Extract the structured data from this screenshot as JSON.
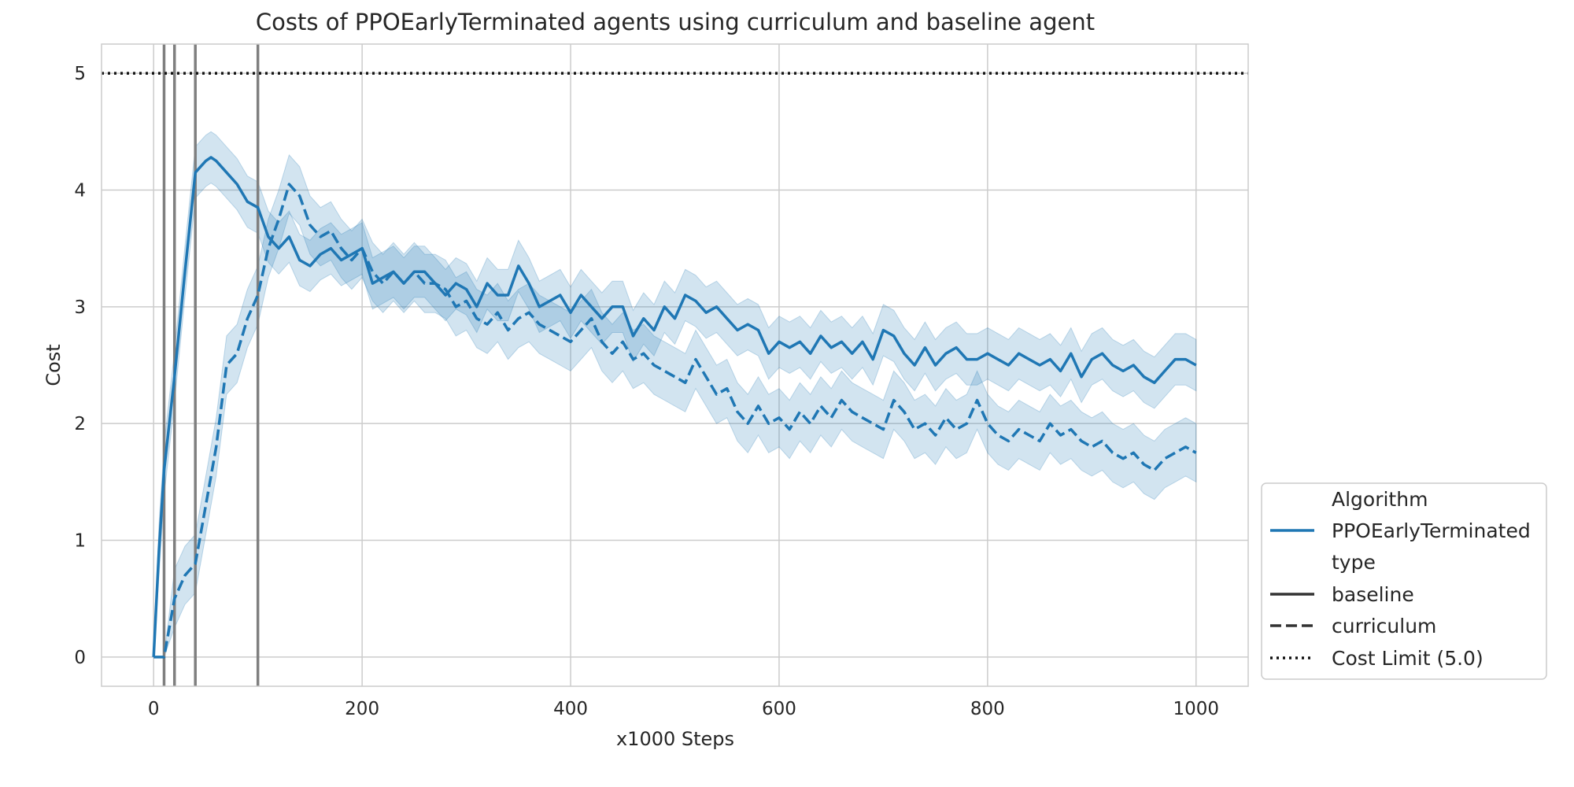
{
  "chart_data": {
    "type": "line",
    "title": "Costs of PPOEarlyTerminated agents using curriculum and baseline agent",
    "xlabel": "x1000 Steps",
    "ylabel": "Cost",
    "xlim": [
      -50,
      1050
    ],
    "ylim": [
      -0.25,
      5.25
    ],
    "xticks": [
      "0",
      "200",
      "400",
      "600",
      "800",
      "1000"
    ],
    "yticks": [
      "0",
      "1",
      "2",
      "3",
      "4",
      "5"
    ],
    "grid": true,
    "legend_position": "lower-right outside",
    "cost_limit": 5.0,
    "curriculum_vlines": [
      10,
      20,
      40,
      100
    ],
    "color": "#1f77b4",
    "series": [
      {
        "name": "baseline",
        "style": "solid",
        "x": [
          0,
          5,
          10,
          20,
          30,
          40,
          45,
          50,
          55,
          60,
          70,
          80,
          90,
          100,
          110,
          120,
          130,
          140,
          150,
          160,
          170,
          180,
          190,
          200,
          210,
          220,
          230,
          240,
          250,
          260,
          270,
          280,
          290,
          300,
          310,
          320,
          330,
          340,
          350,
          360,
          370,
          380,
          390,
          400,
          410,
          420,
          430,
          440,
          450,
          460,
          470,
          480,
          490,
          500,
          510,
          520,
          530,
          540,
          550,
          560,
          570,
          580,
          590,
          600,
          610,
          620,
          630,
          640,
          650,
          660,
          670,
          680,
          690,
          700,
          710,
          720,
          730,
          740,
          750,
          760,
          770,
          780,
          790,
          800,
          810,
          820,
          830,
          840,
          850,
          860,
          870,
          880,
          890,
          900,
          910,
          920,
          930,
          940,
          950,
          960,
          970,
          980,
          990,
          1000
        ],
        "y": [
          0.0,
          0.9,
          1.6,
          2.4,
          3.3,
          4.15,
          4.2,
          4.25,
          4.28,
          4.25,
          4.15,
          4.05,
          3.9,
          3.85,
          3.6,
          3.5,
          3.6,
          3.4,
          3.35,
          3.45,
          3.5,
          3.4,
          3.45,
          3.5,
          3.2,
          3.25,
          3.3,
          3.2,
          3.3,
          3.3,
          3.2,
          3.1,
          3.2,
          3.15,
          3.0,
          3.2,
          3.1,
          3.1,
          3.35,
          3.2,
          3.0,
          3.05,
          3.1,
          2.95,
          3.1,
          3.0,
          2.9,
          3.0,
          3.0,
          2.75,
          2.9,
          2.8,
          3.0,
          2.9,
          3.1,
          3.05,
          2.95,
          3.0,
          2.9,
          2.8,
          2.85,
          2.8,
          2.6,
          2.7,
          2.65,
          2.7,
          2.6,
          2.75,
          2.65,
          2.7,
          2.6,
          2.7,
          2.55,
          2.8,
          2.75,
          2.6,
          2.5,
          2.65,
          2.5,
          2.6,
          2.65,
          2.55,
          2.55,
          2.6,
          2.55,
          2.5,
          2.6,
          2.55,
          2.5,
          2.55,
          2.45,
          2.6,
          2.4,
          2.55,
          2.6,
          2.5,
          2.45,
          2.5,
          2.4,
          2.35,
          2.45,
          2.55,
          2.55,
          2.5
        ]
      },
      {
        "name": "curriculum",
        "style": "dashed",
        "x": [
          0,
          10,
          20,
          30,
          40,
          50,
          60,
          70,
          80,
          90,
          100,
          110,
          120,
          130,
          140,
          150,
          160,
          170,
          180,
          190,
          200,
          210,
          220,
          230,
          240,
          250,
          260,
          270,
          280,
          290,
          300,
          310,
          320,
          330,
          340,
          350,
          360,
          370,
          380,
          390,
          400,
          410,
          420,
          430,
          440,
          450,
          460,
          470,
          480,
          490,
          500,
          510,
          520,
          530,
          540,
          550,
          560,
          570,
          580,
          590,
          600,
          610,
          620,
          630,
          640,
          650,
          660,
          670,
          680,
          690,
          700,
          710,
          720,
          730,
          740,
          750,
          760,
          770,
          780,
          790,
          800,
          810,
          820,
          830,
          840,
          850,
          860,
          870,
          880,
          890,
          900,
          910,
          920,
          930,
          940,
          950,
          960,
          970,
          980,
          990,
          1000
        ],
        "y": [
          0.0,
          0.0,
          0.5,
          0.7,
          0.8,
          1.3,
          1.8,
          2.5,
          2.6,
          2.9,
          3.1,
          3.5,
          3.75,
          4.05,
          3.95,
          3.7,
          3.6,
          3.65,
          3.5,
          3.4,
          3.5,
          3.3,
          3.2,
          3.3,
          3.2,
          3.3,
          3.2,
          3.2,
          3.15,
          3.0,
          3.05,
          2.9,
          2.85,
          2.95,
          2.8,
          2.9,
          2.95,
          2.85,
          2.8,
          2.75,
          2.7,
          2.8,
          2.9,
          2.7,
          2.6,
          2.7,
          2.55,
          2.6,
          2.5,
          2.45,
          2.4,
          2.35,
          2.55,
          2.4,
          2.25,
          2.3,
          2.1,
          2.0,
          2.15,
          2.0,
          2.05,
          1.95,
          2.1,
          2.0,
          2.15,
          2.05,
          2.2,
          2.1,
          2.05,
          2.0,
          1.95,
          2.2,
          2.1,
          1.95,
          2.0,
          1.9,
          2.05,
          1.95,
          2.0,
          2.2,
          2.0,
          1.9,
          1.85,
          1.95,
          1.9,
          1.85,
          2.0,
          1.9,
          1.95,
          1.85,
          1.8,
          1.85,
          1.75,
          1.7,
          1.75,
          1.65,
          1.6,
          1.7,
          1.75,
          1.8,
          1.75
        ],
        "ci_halfwidth": 0.25
      }
    ],
    "legend": {
      "header_algorithm": "Algorithm",
      "entry_algorithm": "PPOEarlyTerminated",
      "header_type": "type",
      "entry_baseline": "baseline",
      "entry_curriculum": "curriculum",
      "entry_limit": "Cost Limit (5.0)"
    }
  }
}
